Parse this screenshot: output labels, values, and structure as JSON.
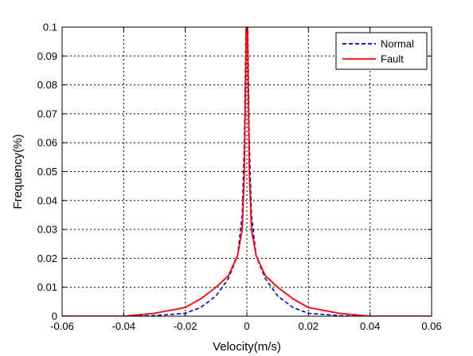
{
  "chart_data": {
    "type": "line",
    "xlabel": "Velocity(m/s)",
    "ylabel": "Frequency(%)",
    "xlim": [
      -0.06,
      0.06
    ],
    "ylim": [
      0,
      0.1
    ],
    "xticks": [
      -0.06,
      -0.04,
      -0.02,
      0,
      0.02,
      0.04,
      0.06
    ],
    "xtick_labels": [
      "-0.06",
      "-0.04",
      "-0.02",
      "0",
      "0.02",
      "0.04",
      "0.06"
    ],
    "yticks": [
      0,
      0.01,
      0.02,
      0.03,
      0.04,
      0.05,
      0.06,
      0.07,
      0.08,
      0.09,
      0.1
    ],
    "ytick_labels": [
      "0",
      "0.01",
      "0.02",
      "0.03",
      "0.04",
      "0.05",
      "0.06",
      "0.07",
      "0.08",
      "0.09",
      "0.1"
    ],
    "grid": true,
    "legend_position": "top-right",
    "series": [
      {
        "name": "Normal",
        "color": "#0000cc",
        "style": "dashed",
        "x": [
          -0.06,
          -0.04,
          -0.03,
          -0.02,
          -0.015,
          -0.01,
          -0.006,
          -0.003,
          -0.0015,
          -0.0008,
          -0.0003,
          0.0,
          0.0003,
          0.0008,
          0.0015,
          0.003,
          0.006,
          0.01,
          0.015,
          0.02,
          0.03,
          0.04,
          0.06
        ],
        "y": [
          0,
          0,
          0.0002,
          0.001,
          0.003,
          0.007,
          0.013,
          0.021,
          0.035,
          0.06,
          0.1,
          0.1,
          0.1,
          0.06,
          0.035,
          0.021,
          0.013,
          0.007,
          0.003,
          0.001,
          0.0002,
          0,
          0
        ]
      },
      {
        "name": "Fault",
        "color": "#ff0000",
        "style": "solid",
        "x": [
          -0.06,
          -0.04,
          -0.03,
          -0.02,
          -0.015,
          -0.01,
          -0.006,
          -0.003,
          -0.0015,
          -0.0008,
          -0.0002,
          0.0,
          0.0002,
          0.0008,
          0.0015,
          0.003,
          0.006,
          0.01,
          0.015,
          0.02,
          0.03,
          0.04,
          0.06
        ],
        "y": [
          0,
          0,
          0.001,
          0.003,
          0.006,
          0.01,
          0.014,
          0.021,
          0.03,
          0.05,
          0.1,
          0.1,
          0.1,
          0.05,
          0.03,
          0.021,
          0.014,
          0.01,
          0.006,
          0.003,
          0.001,
          0,
          0
        ]
      }
    ]
  }
}
